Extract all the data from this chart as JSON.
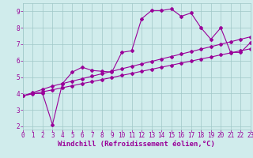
{
  "x": [
    0,
    1,
    2,
    3,
    4,
    5,
    6,
    7,
    8,
    9,
    10,
    11,
    12,
    13,
    14,
    15,
    16,
    17,
    18,
    19,
    20,
    21,
    22,
    23
  ],
  "line1": [
    3.85,
    4.0,
    4.0,
    2.1,
    4.6,
    5.3,
    5.6,
    5.4,
    5.35,
    5.3,
    6.5,
    6.6,
    8.55,
    9.05,
    9.05,
    9.15,
    8.7,
    8.9,
    8.0,
    7.3,
    8.0,
    6.5,
    6.5,
    7.1
  ],
  "line2": [
    3.85,
    4.05,
    4.25,
    4.45,
    4.6,
    4.75,
    4.9,
    5.05,
    5.2,
    5.35,
    5.5,
    5.65,
    5.8,
    5.95,
    6.1,
    6.25,
    6.4,
    6.55,
    6.7,
    6.85,
    7.0,
    7.15,
    7.3,
    7.45
  ],
  "line3": [
    3.85,
    3.98,
    4.1,
    4.22,
    4.35,
    4.47,
    4.6,
    4.72,
    4.85,
    4.97,
    5.1,
    5.22,
    5.35,
    5.47,
    5.6,
    5.72,
    5.85,
    5.97,
    6.1,
    6.22,
    6.35,
    6.47,
    6.6,
    6.72
  ],
  "line_color": "#990099",
  "marker": "D",
  "marker_size": 2.0,
  "linewidth": 0.8,
  "bg_color": "#d0ecec",
  "grid_color": "#a0c8c8",
  "xlabel": "Windchill (Refroidissement éolien,°C)",
  "xlabel_color": "#990099",
  "xlabel_fontsize": 6.5,
  "tick_color": "#990099",
  "tick_fontsize": 5.5,
  "xlim": [
    0,
    23
  ],
  "ylim": [
    1.8,
    9.5
  ],
  "yticks": [
    2,
    3,
    4,
    5,
    6,
    7,
    8,
    9
  ],
  "xticks": [
    0,
    1,
    2,
    3,
    4,
    5,
    6,
    7,
    8,
    9,
    10,
    11,
    12,
    13,
    14,
    15,
    16,
    17,
    18,
    19,
    20,
    21,
    22,
    23
  ]
}
